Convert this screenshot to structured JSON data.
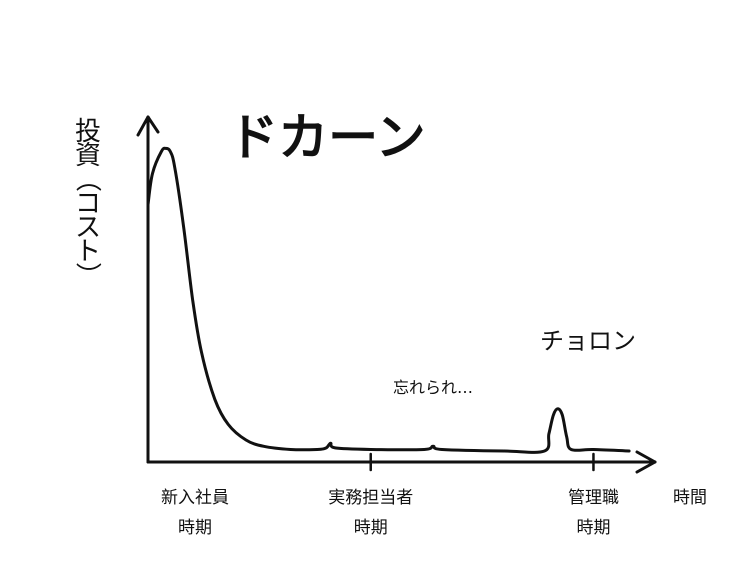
{
  "chart_data": {
    "type": "line",
    "ylabel": "投資（コスト）",
    "xlabel": "時間",
    "x_ticks": [
      {
        "label": [
          "新入社員",
          "時期"
        ],
        "x": 0
      },
      {
        "label": [
          "実務担当者",
          "時期"
        ],
        "x": 50
      },
      {
        "label": [
          "管理職",
          "時期"
        ],
        "x": 100
      }
    ],
    "series": [
      {
        "values": [
          [
            0,
            82
          ],
          [
            1,
            92
          ],
          [
            3,
            99
          ],
          [
            4,
            100
          ],
          [
            5,
            99
          ],
          [
            6,
            94
          ],
          [
            8,
            75
          ],
          [
            10,
            52
          ],
          [
            12,
            35
          ],
          [
            15,
            20
          ],
          [
            18,
            12
          ],
          [
            22,
            7
          ],
          [
            26,
            5
          ],
          [
            32,
            4
          ],
          [
            38,
            4
          ],
          [
            40,
            4.5
          ],
          [
            41,
            6
          ],
          [
            42,
            4.5
          ],
          [
            50,
            4
          ],
          [
            62,
            4
          ],
          [
            64,
            5
          ],
          [
            66,
            4
          ],
          [
            80,
            3.5
          ],
          [
            89,
            3.5
          ],
          [
            90,
            9
          ],
          [
            91,
            15
          ],
          [
            92,
            17
          ],
          [
            93,
            15
          ],
          [
            94,
            8
          ],
          [
            95,
            4
          ],
          [
            100,
            4
          ],
          [
            108,
            3.5
          ]
        ]
      }
    ],
    "annotations": [
      {
        "text": "ドカーン",
        "x": 18,
        "y": 98,
        "size": "big"
      },
      {
        "text": "忘れられ…",
        "x": 55,
        "y": 22,
        "size": "small"
      },
      {
        "text": "チョロン",
        "x": 88,
        "y": 36,
        "size": "mid"
      }
    ],
    "xlim": [
      0,
      110
    ],
    "ylim": [
      0,
      110
    ]
  }
}
